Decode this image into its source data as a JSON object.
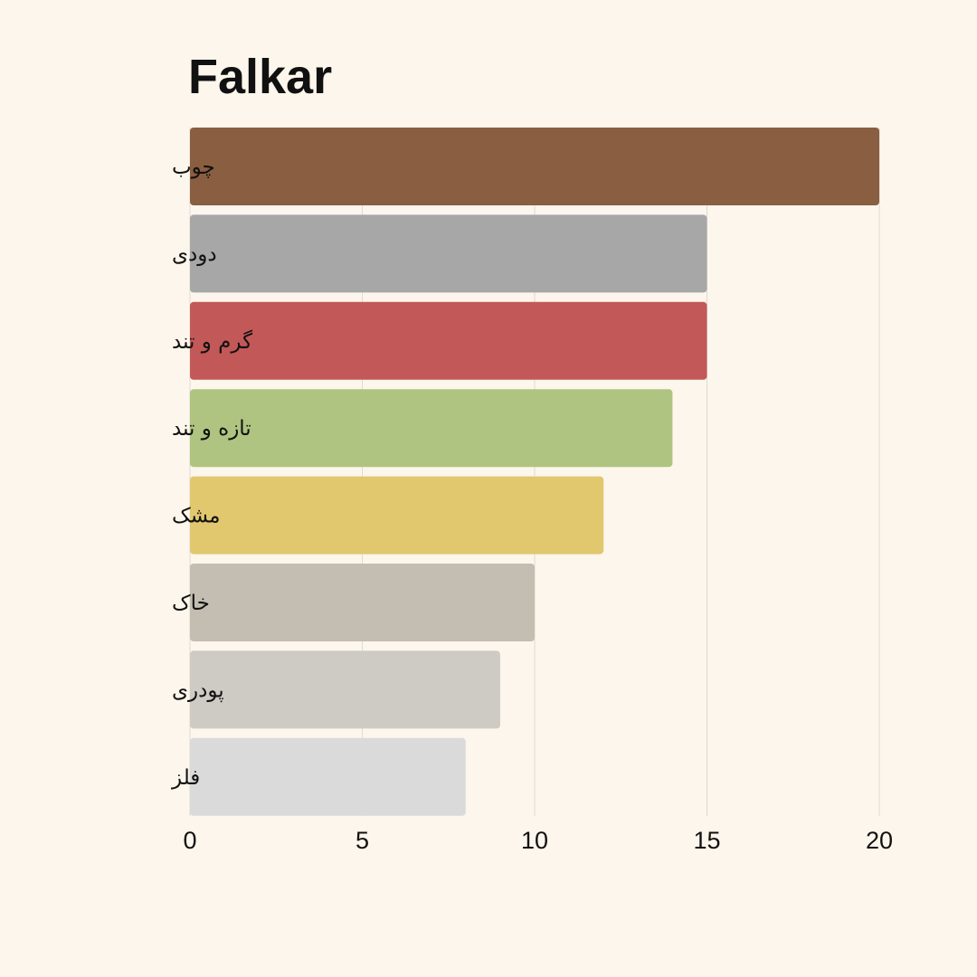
{
  "chart_data": {
    "type": "bar",
    "orientation": "horizontal",
    "title": "Falkar",
    "xlabel": "",
    "ylabel": "",
    "categories": [
      "چوب",
      "دودی",
      "گرم و تند",
      "تازه و تند",
      "مشک",
      "خاک",
      "پودری",
      "فلز"
    ],
    "values": [
      20,
      15,
      15,
      14,
      12,
      10,
      9,
      8
    ],
    "colors": [
      "#8a5e40",
      "#a7a7a7",
      "#c35858",
      "#afc480",
      "#e1c76e",
      "#c4bdb1",
      "#cdcbc4",
      "#dadada"
    ],
    "xlim": [
      0,
      20
    ],
    "x_ticks": [
      0,
      5,
      10,
      15,
      20
    ],
    "grid": "vertical",
    "legend": "none"
  },
  "style": {
    "background": "#fdf6ec",
    "grid_color": "#dedbd3",
    "text_color": "#111111"
  }
}
